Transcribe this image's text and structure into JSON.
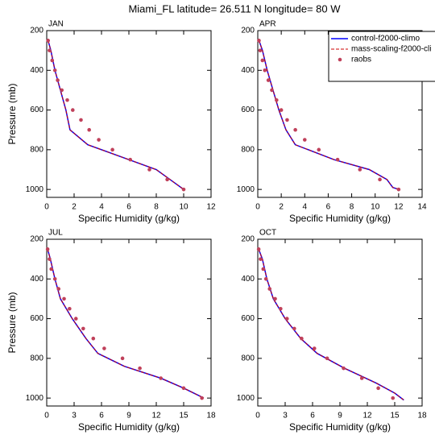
{
  "title": "Miami_FL  latitude= 26.511 N longitude= 80 W",
  "chart_data": [
    {
      "type": "line",
      "title": "JAN",
      "xlabel": "Specific Humidity (g/kg)",
      "ylabel": "Pressure (mb)",
      "xlim": [
        0,
        12
      ],
      "xticks": [
        0,
        2,
        4,
        6,
        8,
        10,
        12
      ],
      "ylim": [
        1040,
        200
      ],
      "yticks": [
        200,
        400,
        600,
        800,
        1000
      ],
      "series": [
        {
          "name": "control-f2000-climo",
          "color": "#0000ff",
          "mode": "line",
          "x": [
            0.1,
            0.3,
            0.6,
            1.0,
            1.4,
            1.7,
            3.0,
            6.0,
            8.0,
            9.0,
            10.0
          ],
          "y": [
            250,
            300,
            400,
            500,
            600,
            700,
            775,
            850,
            900,
            950,
            1000
          ]
        },
        {
          "name": "mass-scaling-f2000-cli",
          "color": "#cc0000",
          "mode": "dashed",
          "x": [
            0.1,
            0.3,
            0.6,
            1.0,
            1.4,
            1.7,
            3.0,
            6.0,
            8.0,
            9.0,
            10.0
          ],
          "y": [
            250,
            300,
            400,
            500,
            600,
            700,
            775,
            850,
            900,
            950,
            1000
          ]
        },
        {
          "name": "raobs",
          "color": "#c0405a",
          "mode": "markers",
          "x": [
            0.1,
            0.2,
            0.4,
            0.6,
            0.8,
            1.1,
            1.5,
            1.9,
            2.5,
            3.1,
            3.8,
            4.8,
            6.1,
            7.5,
            8.8,
            10.0
          ],
          "y": [
            250,
            300,
            350,
            400,
            450,
            500,
            550,
            600,
            650,
            700,
            750,
            800,
            850,
            900,
            950,
            1000
          ]
        }
      ]
    },
    {
      "type": "line",
      "title": "APR",
      "xlabel": "Specific Humidity (g/kg)",
      "legend": "upper right",
      "xlim": [
        0,
        14
      ],
      "xticks": [
        0,
        2,
        4,
        6,
        8,
        10,
        12,
        14
      ],
      "ylim": [
        1040,
        200
      ],
      "yticks": [
        200,
        400,
        600,
        800,
        1000
      ],
      "series": [
        {
          "name": "control-f2000-climo",
          "color": "#0000ff",
          "mode": "line",
          "x": [
            0.1,
            0.4,
            0.8,
            1.3,
            1.8,
            2.4,
            3.2,
            6.5,
            9.5,
            11.0,
            11.5,
            12.0
          ],
          "y": [
            250,
            300,
            400,
            500,
            600,
            700,
            775,
            850,
            900,
            950,
            990,
            1000
          ]
        },
        {
          "name": "mass-scaling-f2000-cli",
          "color": "#cc0000",
          "mode": "dashed",
          "x": [
            0.1,
            0.4,
            0.8,
            1.3,
            1.8,
            2.4,
            3.2,
            6.5,
            9.5,
            11.0,
            11.5,
            12.0
          ],
          "y": [
            250,
            300,
            400,
            500,
            600,
            700,
            775,
            850,
            900,
            950,
            990,
            1000
          ]
        },
        {
          "name": "raobs",
          "color": "#c0405a",
          "mode": "markers",
          "x": [
            0.1,
            0.2,
            0.4,
            0.6,
            0.9,
            1.2,
            1.6,
            2.0,
            2.5,
            3.2,
            4.0,
            5.2,
            6.8,
            8.7,
            10.4,
            12.0
          ],
          "y": [
            250,
            300,
            350,
            400,
            450,
            500,
            550,
            600,
            650,
            700,
            750,
            800,
            850,
            900,
            950,
            1000
          ]
        }
      ]
    },
    {
      "type": "line",
      "title": "JUL",
      "xlabel": "Specific Humidity (g/kg)",
      "ylabel": "Pressure (mb)",
      "xlim": [
        0,
        18
      ],
      "xticks": [
        0,
        3,
        6,
        9,
        12,
        15,
        18
      ],
      "ylim": [
        1040,
        200
      ],
      "yticks": [
        200,
        400,
        600,
        800,
        1000
      ],
      "series": [
        {
          "name": "control-f2000-climo",
          "color": "#0000ff",
          "mode": "line",
          "x": [
            0.1,
            0.4,
            0.9,
            1.5,
            2.8,
            4.3,
            5.6,
            8.5,
            12.5,
            15.0,
            17.2
          ],
          "y": [
            250,
            300,
            400,
            500,
            600,
            700,
            775,
            840,
            900,
            950,
            1000
          ]
        },
        {
          "name": "mass-scaling-f2000-cli",
          "color": "#cc0000",
          "mode": "dashed",
          "x": [
            0.1,
            0.4,
            0.9,
            1.5,
            2.8,
            4.3,
            5.6,
            8.5,
            12.5,
            15.0,
            17.2
          ],
          "y": [
            250,
            300,
            400,
            500,
            600,
            700,
            775,
            840,
            900,
            950,
            1000
          ]
        },
        {
          "name": "raobs",
          "color": "#c0405a",
          "mode": "markers",
          "x": [
            0.1,
            0.3,
            0.5,
            0.9,
            1.3,
            1.9,
            2.5,
            3.2,
            4.0,
            5.1,
            6.3,
            8.3,
            10.2,
            12.5,
            15.0,
            17.0
          ],
          "y": [
            250,
            300,
            350,
            400,
            450,
            500,
            550,
            600,
            650,
            700,
            750,
            800,
            850,
            900,
            950,
            1000
          ]
        }
      ]
    },
    {
      "type": "line",
      "title": "OCT",
      "xlabel": "Specific Humidity (g/kg)",
      "xlim": [
        0,
        18
      ],
      "xticks": [
        0,
        3,
        6,
        9,
        12,
        15,
        18
      ],
      "ylim": [
        1040,
        200
      ],
      "yticks": [
        200,
        400,
        600,
        800,
        1000
      ],
      "series": [
        {
          "name": "control-f2000-climo",
          "color": "#0000ff",
          "mode": "line",
          "x": [
            0.1,
            0.5,
            1.0,
            1.7,
            3.0,
            4.7,
            6.5,
            9.5,
            13.0,
            15.0,
            16.0
          ],
          "y": [
            250,
            300,
            400,
            500,
            600,
            700,
            775,
            850,
            925,
            975,
            1010
          ]
        },
        {
          "name": "mass-scaling-f2000-cli",
          "color": "#cc0000",
          "mode": "dashed",
          "x": [
            0.1,
            0.5,
            1.0,
            1.7,
            3.0,
            4.7,
            6.5,
            9.5,
            13.0,
            15.0,
            16.0
          ],
          "y": [
            250,
            300,
            400,
            500,
            600,
            700,
            775,
            850,
            925,
            975,
            1010
          ]
        },
        {
          "name": "raobs",
          "color": "#c0405a",
          "mode": "markers",
          "x": [
            0.1,
            0.3,
            0.6,
            0.9,
            1.3,
            1.9,
            2.5,
            3.2,
            4.0,
            4.8,
            6.2,
            7.6,
            9.4,
            11.4,
            13.2,
            14.8
          ],
          "y": [
            250,
            300,
            350,
            400,
            450,
            500,
            550,
            600,
            650,
            700,
            750,
            800,
            850,
            900,
            950,
            1000
          ]
        }
      ]
    }
  ]
}
